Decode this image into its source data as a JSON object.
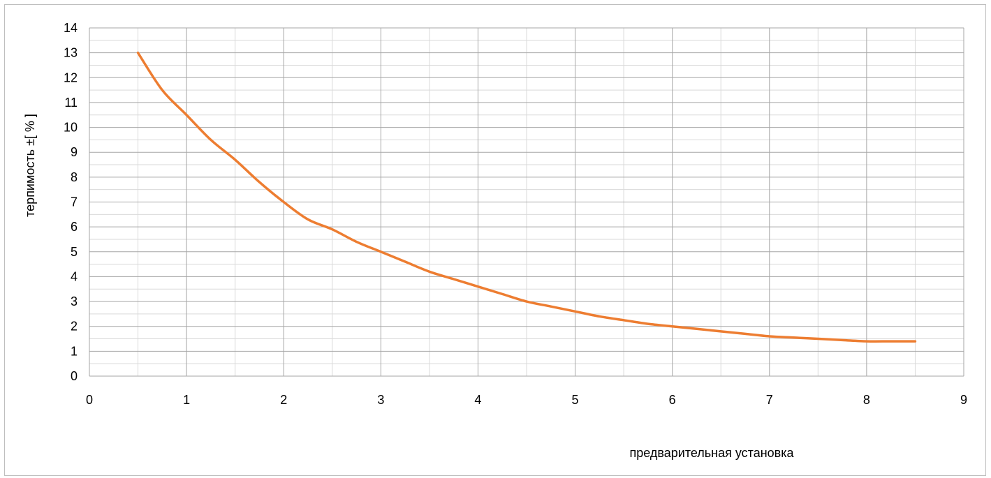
{
  "chart_data": {
    "type": "line",
    "title": "",
    "xlabel": "предварительная установка",
    "ylabel": "терпимость ±[ % ]",
    "xlim": [
      0,
      9
    ],
    "ylim": [
      0,
      14
    ],
    "x_ticks": [
      0,
      1,
      2,
      3,
      4,
      5,
      6,
      7,
      8,
      9
    ],
    "y_ticks": [
      0,
      1,
      2,
      3,
      4,
      5,
      6,
      7,
      8,
      9,
      10,
      11,
      12,
      13,
      14
    ],
    "x_minor_step": 0.5,
    "y_minor_step": 0.5,
    "grid": true,
    "legend": "none",
    "series": [
      {
        "color": "#ed7d31",
        "x": [
          0.5,
          0.75,
          1,
          1.25,
          1.5,
          1.75,
          2,
          2.25,
          2.5,
          2.75,
          3,
          3.25,
          3.5,
          3.75,
          4,
          4.25,
          4.5,
          4.75,
          5,
          5.25,
          5.5,
          5.75,
          6,
          6.25,
          6.5,
          6.75,
          7,
          7.25,
          7.5,
          7.75,
          8,
          8.25,
          8.5
        ],
        "y": [
          13,
          11.5,
          10.5,
          9.5,
          8.7,
          7.8,
          7,
          6.3,
          5.9,
          5.4,
          5,
          4.6,
          4.2,
          3.9,
          3.6,
          3.3,
          3,
          2.8,
          2.6,
          2.4,
          2.25,
          2.1,
          2,
          1.9,
          1.8,
          1.7,
          1.6,
          1.55,
          1.5,
          1.45,
          1.4,
          1.4,
          1.4
        ]
      }
    ]
  },
  "colors": {
    "major_grid": "#a6a6a6",
    "minor_grid": "#d9d9d9",
    "series": "#ed7d31"
  }
}
